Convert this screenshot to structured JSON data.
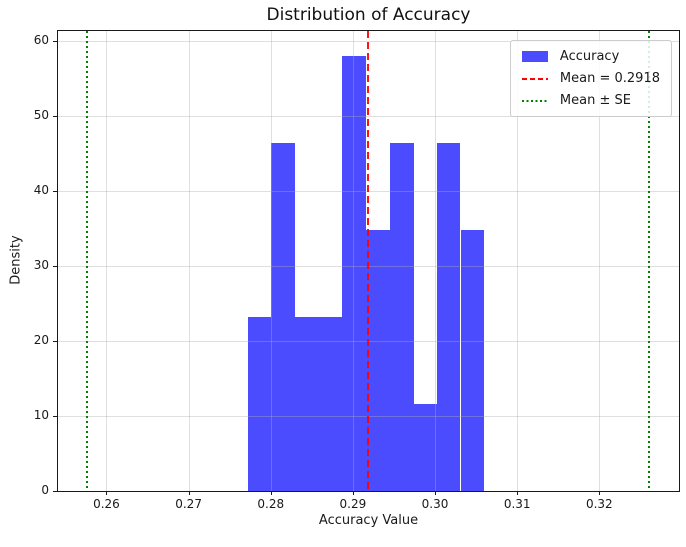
{
  "chart_data": {
    "type": "bar",
    "subtype": "histogram",
    "title": "Distribution of Accuracy",
    "xlabel": "Accuracy Value",
    "ylabel": "Density",
    "series_name": "Accuracy",
    "bin_edges": [
      0.2772,
      0.28,
      0.2829,
      0.2858,
      0.2887,
      0.2916,
      0.2945,
      0.2974,
      0.3002,
      0.3031,
      0.306
    ],
    "densities": [
      23.2,
      46.5,
      23.2,
      23.2,
      58.1,
      34.9,
      46.5,
      11.6,
      46.5,
      34.9
    ],
    "counts_per_bin": [
      2,
      4,
      2,
      2,
      5,
      3,
      4,
      1,
      4,
      3
    ],
    "mean": 0.2918,
    "se": 0.0343,
    "mean_minus_se": 0.2576,
    "mean_plus_se": 0.3261,
    "xlim": [
      0.2541,
      0.3297
    ],
    "ylim": [
      0,
      61.4
    ],
    "xticks": {
      "values": [
        0.26,
        0.27,
        0.28,
        0.29,
        0.3,
        0.31,
        0.32
      ],
      "labels": [
        "0.26",
        "0.27",
        "0.28",
        "0.29",
        "0.30",
        "0.31",
        "0.32"
      ]
    },
    "yticks": {
      "values": [
        0,
        10,
        20,
        30,
        40,
        50,
        60
      ],
      "labels": [
        "0",
        "10",
        "20",
        "30",
        "40",
        "50",
        "60"
      ]
    },
    "grid": true,
    "legend": {
      "position": "upper right",
      "entries": [
        {
          "label": "Accuracy",
          "marker": "patch",
          "color": "#0000ff"
        },
        {
          "label": "Mean = 0.2918",
          "marker": "dashed-line",
          "color": "#ff0000"
        },
        {
          "label": "Mean ± SE",
          "marker": "dotted-line",
          "color": "#008000"
        }
      ]
    },
    "lines": [
      {
        "name": "mean-line",
        "value": 0.2918,
        "style": "dashed",
        "color": "#ff0000"
      },
      {
        "name": "mean-minus-se-line",
        "value": 0.2576,
        "style": "dotted",
        "color": "#008000"
      },
      {
        "name": "mean-plus-se-line",
        "value": 0.3261,
        "style": "dotted",
        "color": "#008000"
      }
    ],
    "colors": {
      "bar": "#0000ff",
      "bar_alpha": 0.7,
      "mean_line": "#ff0000",
      "se_line": "#008000",
      "grid": "#dedede",
      "spine": "#1a1a1a"
    }
  }
}
